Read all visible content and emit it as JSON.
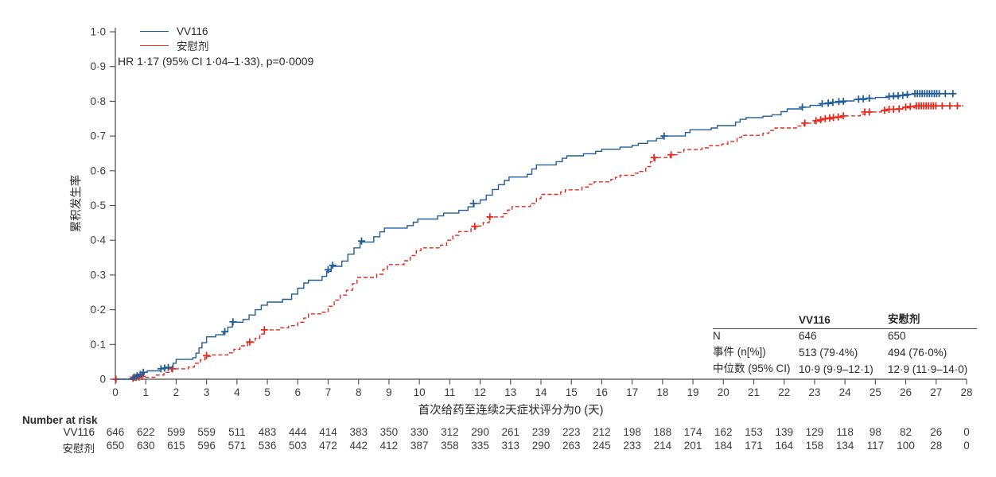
{
  "chart_data": {
    "type": "line",
    "subtype": "kaplan-meier-cumulative-incidence-step",
    "title": "",
    "xlabel": "首次给药至连续2天症状评分为0 (天)",
    "ylabel": "累积发生率",
    "xlim": [
      0,
      28
    ],
    "ylim": [
      0,
      1.0
    ],
    "grid": false,
    "legend_position": "top-left",
    "x_ticks": [
      0,
      1,
      2,
      3,
      4,
      5,
      6,
      7,
      8,
      9,
      10,
      11,
      12,
      13,
      14,
      15,
      16,
      17,
      18,
      19,
      20,
      21,
      22,
      23,
      24,
      25,
      26,
      27,
      28
    ],
    "y_ticks": [
      0,
      0.1,
      0.2,
      0.3,
      0.4,
      0.5,
      0.6,
      0.7,
      0.8,
      0.9,
      1.0
    ],
    "y_tick_labels": [
      "0",
      "0·1",
      "0·2",
      "0·3",
      "0·4",
      "0·5",
      "0·6",
      "0·7",
      "0·8",
      "0·9",
      "1·0"
    ],
    "annotation": "HR 1·17 (95% CI 1·04–1·33), p=0·0009",
    "axis_color": "#4a4a4a",
    "tick_label_color": "#3c3c3c",
    "series": [
      {
        "name": "VV116",
        "color": "#235d96",
        "line_style": "solid",
        "end_day": 27.6,
        "points": [
          [
            0.55,
            0.004
          ],
          [
            0.7,
            0.008
          ],
          [
            0.85,
            0.014
          ],
          [
            0.95,
            0.02
          ],
          [
            1.05,
            0.024
          ],
          [
            1.5,
            0.03
          ],
          [
            1.65,
            0.034
          ],
          [
            1.9,
            0.046
          ],
          [
            2.0,
            0.057
          ],
          [
            2.55,
            0.062
          ],
          [
            2.65,
            0.075
          ],
          [
            2.75,
            0.09
          ],
          [
            2.85,
            0.105
          ],
          [
            3.0,
            0.122
          ],
          [
            3.3,
            0.128
          ],
          [
            3.55,
            0.136
          ],
          [
            3.7,
            0.15
          ],
          [
            3.85,
            0.164
          ],
          [
            4.2,
            0.172
          ],
          [
            4.4,
            0.185
          ],
          [
            4.6,
            0.2
          ],
          [
            4.8,
            0.213
          ],
          [
            5.0,
            0.222
          ],
          [
            5.5,
            0.23
          ],
          [
            5.8,
            0.245
          ],
          [
            6.0,
            0.262
          ],
          [
            6.2,
            0.277
          ],
          [
            6.35,
            0.285
          ],
          [
            6.8,
            0.296
          ],
          [
            6.95,
            0.31
          ],
          [
            7.1,
            0.325
          ],
          [
            7.45,
            0.34
          ],
          [
            7.65,
            0.36
          ],
          [
            7.85,
            0.378
          ],
          [
            8.05,
            0.395
          ],
          [
            8.5,
            0.41
          ],
          [
            8.7,
            0.424
          ],
          [
            8.85,
            0.435
          ],
          [
            9.6,
            0.442
          ],
          [
            9.8,
            0.452
          ],
          [
            9.95,
            0.461
          ],
          [
            10.6,
            0.47
          ],
          [
            10.8,
            0.478
          ],
          [
            11.3,
            0.486
          ],
          [
            11.6,
            0.496
          ],
          [
            11.8,
            0.506
          ],
          [
            12.0,
            0.516
          ],
          [
            12.2,
            0.53
          ],
          [
            12.4,
            0.546
          ],
          [
            12.6,
            0.56
          ],
          [
            12.8,
            0.572
          ],
          [
            12.95,
            0.582
          ],
          [
            13.55,
            0.59
          ],
          [
            13.7,
            0.605
          ],
          [
            13.85,
            0.617
          ],
          [
            14.5,
            0.626
          ],
          [
            14.7,
            0.636
          ],
          [
            14.85,
            0.643
          ],
          [
            15.4,
            0.649
          ],
          [
            15.8,
            0.656
          ],
          [
            16.0,
            0.662
          ],
          [
            16.6,
            0.668
          ],
          [
            17.0,
            0.673
          ],
          [
            17.2,
            0.679
          ],
          [
            17.5,
            0.686
          ],
          [
            17.8,
            0.693
          ],
          [
            18.0,
            0.7
          ],
          [
            18.75,
            0.71
          ],
          [
            18.9,
            0.718
          ],
          [
            19.6,
            0.723
          ],
          [
            19.8,
            0.73
          ],
          [
            20.4,
            0.74
          ],
          [
            20.55,
            0.748
          ],
          [
            20.75,
            0.753
          ],
          [
            21.3,
            0.757
          ],
          [
            21.6,
            0.761
          ],
          [
            21.9,
            0.77
          ],
          [
            22.1,
            0.778
          ],
          [
            22.6,
            0.783
          ],
          [
            22.85,
            0.788
          ],
          [
            23.2,
            0.793
          ],
          [
            23.6,
            0.797
          ],
          [
            24.0,
            0.801
          ],
          [
            24.3,
            0.805
          ],
          [
            24.7,
            0.808
          ],
          [
            25.0,
            0.811
          ],
          [
            25.4,
            0.813
          ],
          [
            25.8,
            0.817
          ],
          [
            26.1,
            0.82
          ],
          [
            26.25,
            0.822
          ]
        ],
        "censor_marks": [
          [
            0.62,
            0.006
          ],
          [
            0.72,
            0.01
          ],
          [
            0.82,
            0.014
          ],
          [
            0.92,
            0.02
          ],
          [
            1.5,
            0.03
          ],
          [
            1.62,
            0.032
          ],
          [
            1.74,
            0.034
          ],
          [
            3.6,
            0.137
          ],
          [
            3.87,
            0.165
          ],
          [
            7.0,
            0.315
          ],
          [
            7.15,
            0.328
          ],
          [
            8.1,
            0.398
          ],
          [
            11.78,
            0.506
          ],
          [
            18.05,
            0.7
          ],
          [
            22.6,
            0.783
          ],
          [
            23.25,
            0.793
          ],
          [
            23.45,
            0.795
          ],
          [
            23.6,
            0.797
          ],
          [
            23.8,
            0.799
          ],
          [
            23.95,
            0.8
          ],
          [
            24.45,
            0.806
          ],
          [
            24.6,
            0.807
          ],
          [
            24.8,
            0.809
          ],
          [
            25.45,
            0.814
          ],
          [
            25.6,
            0.815
          ],
          [
            25.75,
            0.816
          ],
          [
            25.9,
            0.817
          ],
          [
            26.05,
            0.82
          ],
          [
            26.3,
            0.822
          ],
          [
            26.38,
            0.822
          ],
          [
            26.46,
            0.822
          ],
          [
            26.54,
            0.822
          ],
          [
            26.62,
            0.822
          ],
          [
            26.7,
            0.822
          ],
          [
            26.78,
            0.822
          ],
          [
            26.86,
            0.822
          ],
          [
            26.94,
            0.822
          ],
          [
            27.02,
            0.822
          ],
          [
            27.1,
            0.822
          ],
          [
            27.3,
            0.822
          ],
          [
            27.55,
            0.822
          ]
        ]
      },
      {
        "name": "安慰剂",
        "color": "#e42a1d",
        "line_style": "dashed",
        "end_day": 27.9,
        "points": [
          [
            0.55,
            0.003
          ],
          [
            0.8,
            0.006
          ],
          [
            1.3,
            0.012
          ],
          [
            1.6,
            0.02
          ],
          [
            1.85,
            0.03
          ],
          [
            2.4,
            0.035
          ],
          [
            2.6,
            0.046
          ],
          [
            2.8,
            0.056
          ],
          [
            2.95,
            0.066
          ],
          [
            3.15,
            0.07
          ],
          [
            3.7,
            0.076
          ],
          [
            3.9,
            0.086
          ],
          [
            4.1,
            0.096
          ],
          [
            4.35,
            0.106
          ],
          [
            4.6,
            0.118
          ],
          [
            4.75,
            0.13
          ],
          [
            4.9,
            0.142
          ],
          [
            5.4,
            0.148
          ],
          [
            5.7,
            0.154
          ],
          [
            6.0,
            0.164
          ],
          [
            6.2,
            0.176
          ],
          [
            6.35,
            0.188
          ],
          [
            6.8,
            0.193
          ],
          [
            7.0,
            0.21
          ],
          [
            7.2,
            0.228
          ],
          [
            7.4,
            0.242
          ],
          [
            7.6,
            0.256
          ],
          [
            7.8,
            0.275
          ],
          [
            7.95,
            0.293
          ],
          [
            8.6,
            0.302
          ],
          [
            8.8,
            0.316
          ],
          [
            8.95,
            0.33
          ],
          [
            9.5,
            0.341
          ],
          [
            9.7,
            0.356
          ],
          [
            9.9,
            0.37
          ],
          [
            10.05,
            0.378
          ],
          [
            10.7,
            0.386
          ],
          [
            10.9,
            0.4
          ],
          [
            11.1,
            0.414
          ],
          [
            11.3,
            0.425
          ],
          [
            11.7,
            0.433
          ],
          [
            11.85,
            0.441
          ],
          [
            12.1,
            0.451
          ],
          [
            12.3,
            0.467
          ],
          [
            12.75,
            0.477
          ],
          [
            12.9,
            0.487
          ],
          [
            13.05,
            0.497
          ],
          [
            13.65,
            0.506
          ],
          [
            13.85,
            0.52
          ],
          [
            14.0,
            0.532
          ],
          [
            14.65,
            0.539
          ],
          [
            14.8,
            0.545
          ],
          [
            15.35,
            0.553
          ],
          [
            15.55,
            0.561
          ],
          [
            15.75,
            0.568
          ],
          [
            16.3,
            0.575
          ],
          [
            16.45,
            0.581
          ],
          [
            16.6,
            0.587
          ],
          [
            17.1,
            0.593
          ],
          [
            17.25,
            0.598
          ],
          [
            17.45,
            0.612
          ],
          [
            17.6,
            0.626
          ],
          [
            17.75,
            0.638
          ],
          [
            18.25,
            0.646
          ],
          [
            18.5,
            0.653
          ],
          [
            18.7,
            0.661
          ],
          [
            19.3,
            0.666
          ],
          [
            19.5,
            0.672
          ],
          [
            19.95,
            0.677
          ],
          [
            20.15,
            0.684
          ],
          [
            20.45,
            0.696
          ],
          [
            20.6,
            0.702
          ],
          [
            21.3,
            0.708
          ],
          [
            21.5,
            0.716
          ],
          [
            21.7,
            0.723
          ],
          [
            22.4,
            0.729
          ],
          [
            22.65,
            0.737
          ],
          [
            23.0,
            0.743
          ],
          [
            23.3,
            0.749
          ],
          [
            23.6,
            0.753
          ],
          [
            23.9,
            0.758
          ],
          [
            24.5,
            0.763
          ],
          [
            24.7,
            0.769
          ],
          [
            25.2,
            0.773
          ],
          [
            25.45,
            0.777
          ],
          [
            25.9,
            0.781
          ],
          [
            26.3,
            0.787
          ]
        ],
        "censor_marks": [
          [
            0.02,
            0
          ],
          [
            0.58,
            0.003
          ],
          [
            0.68,
            0.005
          ],
          [
            0.78,
            0.006
          ],
          [
            0.88,
            0.008
          ],
          [
            1.88,
            0.03
          ],
          [
            3.0,
            0.068
          ],
          [
            4.42,
            0.107
          ],
          [
            4.9,
            0.142
          ],
          [
            11.82,
            0.44
          ],
          [
            12.32,
            0.467
          ],
          [
            17.72,
            0.638
          ],
          [
            18.28,
            0.646
          ],
          [
            22.68,
            0.737
          ],
          [
            23.05,
            0.744
          ],
          [
            23.2,
            0.747
          ],
          [
            23.35,
            0.75
          ],
          [
            23.5,
            0.752
          ],
          [
            23.62,
            0.753
          ],
          [
            23.78,
            0.755
          ],
          [
            23.95,
            0.758
          ],
          [
            24.65,
            0.769
          ],
          [
            24.8,
            0.769
          ],
          [
            25.3,
            0.774
          ],
          [
            25.45,
            0.777
          ],
          [
            25.6,
            0.777
          ],
          [
            25.78,
            0.778
          ],
          [
            26.0,
            0.783
          ],
          [
            26.15,
            0.785
          ],
          [
            26.35,
            0.787
          ],
          [
            26.43,
            0.787
          ],
          [
            26.51,
            0.787
          ],
          [
            26.59,
            0.787
          ],
          [
            26.67,
            0.787
          ],
          [
            26.75,
            0.787
          ],
          [
            26.83,
            0.787
          ],
          [
            26.91,
            0.787
          ],
          [
            26.99,
            0.787
          ],
          [
            27.2,
            0.787
          ],
          [
            27.45,
            0.787
          ],
          [
            27.7,
            0.787
          ]
        ]
      }
    ]
  },
  "legend": {
    "items": [
      {
        "label": "VV116"
      },
      {
        "label": "安慰剂"
      }
    ]
  },
  "stats_table": {
    "col_headers": [
      "VV116",
      "安慰剂"
    ],
    "rows": [
      {
        "label": "N",
        "vv116": "646",
        "placebo": "650"
      },
      {
        "label": "事件 (n[%])",
        "vv116": "513 (79·4%)",
        "placebo": "494 (76·0%)"
      },
      {
        "label": "中位数 (95% CI)",
        "vv116": "10·9 (9·9–12·1)",
        "placebo": "12·9 (11·9–14·0)"
      }
    ]
  },
  "number_at_risk": {
    "title": "Number at risk",
    "rows": [
      {
        "label": "VV116",
        "values": [
          646,
          622,
          599,
          559,
          511,
          483,
          444,
          414,
          383,
          350,
          330,
          312,
          290,
          261,
          239,
          223,
          212,
          198,
          188,
          174,
          162,
          153,
          139,
          129,
          118,
          98,
          82,
          26,
          0
        ]
      },
      {
        "label": "安慰剂",
        "values": [
          650,
          630,
          615,
          596,
          571,
          536,
          503,
          472,
          442,
          412,
          387,
          358,
          335,
          313,
          290,
          263,
          245,
          233,
          214,
          201,
          184,
          171,
          164,
          158,
          134,
          117,
          100,
          28,
          0
        ]
      }
    ]
  }
}
